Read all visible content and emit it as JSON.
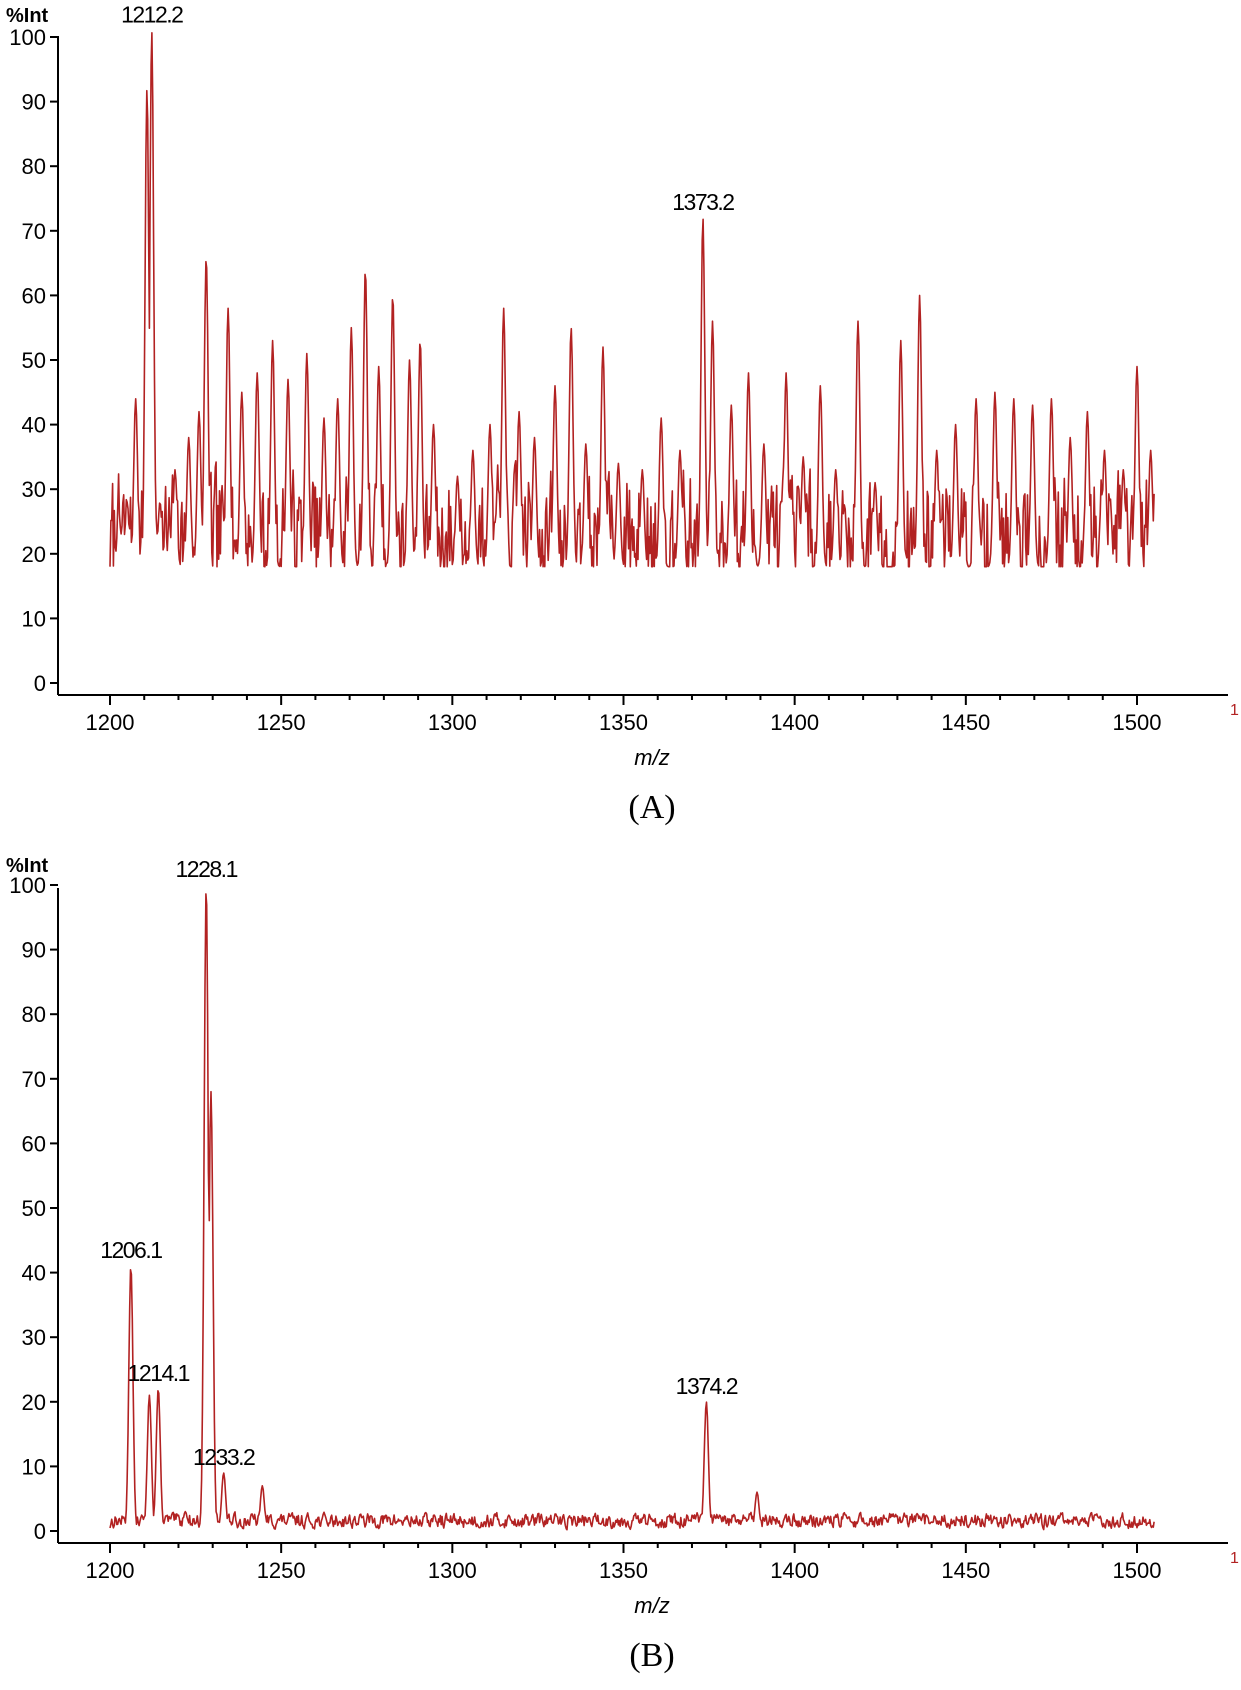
{
  "chart_data": [
    {
      "type": "line",
      "panel_label": "(A)",
      "ylabel": "%Int",
      "xlabel": "m/z",
      "corner_mark": "1",
      "xlim": [
        1200,
        1505
      ],
      "ylim": [
        0,
        103
      ],
      "x_ticks": [
        1200,
        1250,
        1300,
        1350,
        1400,
        1450,
        1500
      ],
      "y_ticks": [
        0,
        10,
        20,
        30,
        40,
        50,
        60,
        70,
        80,
        90,
        100
      ],
      "grid": false,
      "noise": {
        "profile": "high",
        "seed": 7
      },
      "peaks": [
        {
          "x": 1202.6,
          "y": 26
        },
        {
          "x": 1205.0,
          "y": 28
        },
        {
          "x": 1207.5,
          "y": 44
        },
        {
          "x": 1210.8,
          "y": 92
        },
        {
          "x": 1212.2,
          "y": 101,
          "label": "1212.2"
        },
        {
          "x": 1214.6,
          "y": 28
        },
        {
          "x": 1219.0,
          "y": 33
        },
        {
          "x": 1223.0,
          "y": 38
        },
        {
          "x": 1226.0,
          "y": 42
        },
        {
          "x": 1228.1,
          "y": 66
        },
        {
          "x": 1234.5,
          "y": 58
        },
        {
          "x": 1238.5,
          "y": 45
        },
        {
          "x": 1243.0,
          "y": 48
        },
        {
          "x": 1247.5,
          "y": 53
        },
        {
          "x": 1252.0,
          "y": 47
        },
        {
          "x": 1257.5,
          "y": 51
        },
        {
          "x": 1262.5,
          "y": 41
        },
        {
          "x": 1266.5,
          "y": 44
        },
        {
          "x": 1270.5,
          "y": 55
        },
        {
          "x": 1274.6,
          "y": 64
        },
        {
          "x": 1278.5,
          "y": 49
        },
        {
          "x": 1282.6,
          "y": 60
        },
        {
          "x": 1287.5,
          "y": 50
        },
        {
          "x": 1290.6,
          "y": 53
        },
        {
          "x": 1294.5,
          "y": 40
        },
        {
          "x": 1301.5,
          "y": 32
        },
        {
          "x": 1306.0,
          "y": 36
        },
        {
          "x": 1311.0,
          "y": 40
        },
        {
          "x": 1315.0,
          "y": 58
        },
        {
          "x": 1319.5,
          "y": 42
        },
        {
          "x": 1324.0,
          "y": 38
        },
        {
          "x": 1330.0,
          "y": 46
        },
        {
          "x": 1334.7,
          "y": 55
        },
        {
          "x": 1339.0,
          "y": 37
        },
        {
          "x": 1344.0,
          "y": 52
        },
        {
          "x": 1348.5,
          "y": 34
        },
        {
          "x": 1355.5,
          "y": 33
        },
        {
          "x": 1361.0,
          "y": 41
        },
        {
          "x": 1366.5,
          "y": 36
        },
        {
          "x": 1373.2,
          "y": 72,
          "label": "1373.2"
        },
        {
          "x": 1376.0,
          "y": 56
        },
        {
          "x": 1381.5,
          "y": 43
        },
        {
          "x": 1386.5,
          "y": 48
        },
        {
          "x": 1391.0,
          "y": 37
        },
        {
          "x": 1397.5,
          "y": 48
        },
        {
          "x": 1402.5,
          "y": 35
        },
        {
          "x": 1407.5,
          "y": 46
        },
        {
          "x": 1412.0,
          "y": 33
        },
        {
          "x": 1418.5,
          "y": 56
        },
        {
          "x": 1423.5,
          "y": 31
        },
        {
          "x": 1431.0,
          "y": 53
        },
        {
          "x": 1436.5,
          "y": 60
        },
        {
          "x": 1441.5,
          "y": 36
        },
        {
          "x": 1447.0,
          "y": 40
        },
        {
          "x": 1453.0,
          "y": 44
        },
        {
          "x": 1458.5,
          "y": 45
        },
        {
          "x": 1464.0,
          "y": 44
        },
        {
          "x": 1469.5,
          "y": 43
        },
        {
          "x": 1475.0,
          "y": 44
        },
        {
          "x": 1480.5,
          "y": 38
        },
        {
          "x": 1485.5,
          "y": 42
        },
        {
          "x": 1490.5,
          "y": 36
        },
        {
          "x": 1496.0,
          "y": 33
        },
        {
          "x": 1500.0,
          "y": 49
        },
        {
          "x": 1504.0,
          "y": 36
        }
      ]
    },
    {
      "type": "line",
      "panel_label": "(B)",
      "ylabel": "%Int",
      "xlabel": "m/z",
      "corner_mark": "1",
      "xlim": [
        1200,
        1505
      ],
      "ylim": [
        0,
        103
      ],
      "x_ticks": [
        1200,
        1250,
        1300,
        1350,
        1400,
        1450,
        1500
      ],
      "y_ticks": [
        0,
        10,
        20,
        30,
        40,
        50,
        60,
        70,
        80,
        90,
        100
      ],
      "grid": false,
      "noise": {
        "profile": "low",
        "seed": 13
      },
      "peaks": [
        {
          "x": 1206.1,
          "y": 41,
          "label": "1206.1"
        },
        {
          "x": 1211.5,
          "y": 21
        },
        {
          "x": 1214.1,
          "y": 22,
          "label": "1214.1"
        },
        {
          "x": 1222.0,
          "y": 3
        },
        {
          "x": 1228.1,
          "y": 100,
          "label": "1228.1"
        },
        {
          "x": 1229.5,
          "y": 68
        },
        {
          "x": 1233.2,
          "y": 9,
          "label": "1233.2"
        },
        {
          "x": 1244.5,
          "y": 7
        },
        {
          "x": 1374.2,
          "y": 20,
          "label": "1374.2"
        },
        {
          "x": 1389.0,
          "y": 6
        }
      ]
    }
  ]
}
